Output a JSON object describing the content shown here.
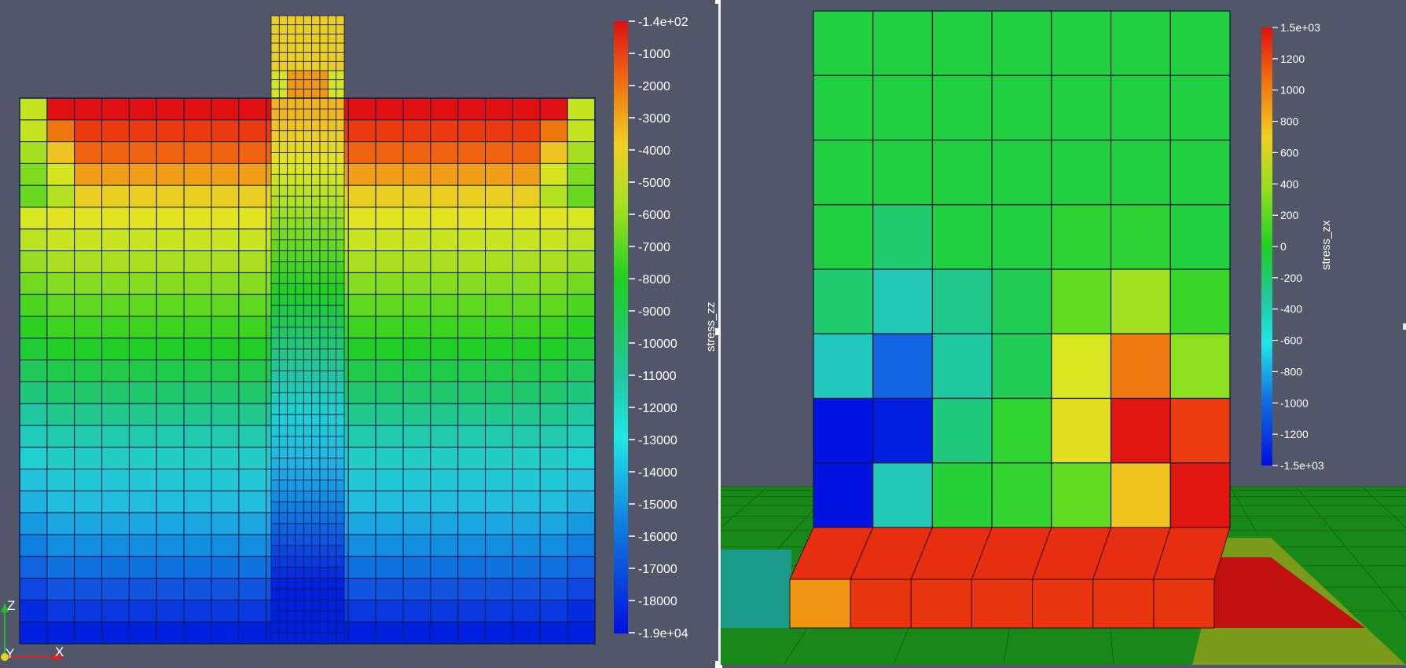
{
  "left_view": {
    "colorbar": {
      "title": "stress_zz",
      "ticks": [
        "-1.4e+02",
        "-1000",
        "-2000",
        "-3000",
        "-4000",
        "-5000",
        "-6000",
        "-7000",
        "-8000",
        "-9000",
        "-10000",
        "-11000",
        "-12000",
        "-13000",
        "-14000",
        "-15000",
        "-16000",
        "-17000",
        "-18000",
        "-1.9e+04"
      ],
      "colors": [
        "#e01010",
        "#f04a10",
        "#f08a10",
        "#f0c020",
        "#e0e820",
        "#a8e020",
        "#60d820",
        "#20d020",
        "#20c860",
        "#20c8a0",
        "#20d0d0",
        "#20b8e0",
        "#1088e0",
        "#1050e0",
        "#0020e0"
      ]
    },
    "orientation_axes": {
      "x_label": "X",
      "y_label": "Y",
      "z_label": "Z"
    }
  },
  "right_view": {
    "colorbar": {
      "title": "stress_zx",
      "ticks": [
        "1.5e+03",
        "1200",
        "1000",
        "800",
        "600",
        "400",
        "200",
        "0",
        "-200",
        "-400",
        "-600",
        "-800",
        "-1000",
        "-1200",
        "-1.5e+03"
      ],
      "colors": [
        "#e01010",
        "#f05010",
        "#f09010",
        "#f0d020",
        "#d8e820",
        "#90e020",
        "#40d820",
        "#20d040",
        "#20c890",
        "#20c8c0",
        "#20c8e0",
        "#2090e0",
        "#1060e0",
        "#0030e0",
        "#0010e0"
      ]
    }
  }
}
